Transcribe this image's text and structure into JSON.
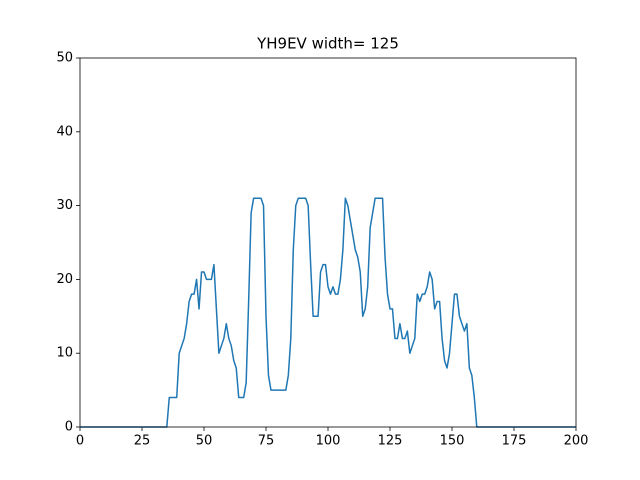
{
  "chart_data": {
    "type": "line",
    "title": "YH9EV width= 125",
    "x": [
      0,
      35,
      36,
      37,
      38,
      39,
      40,
      41,
      42,
      43,
      44,
      45,
      46,
      47,
      48,
      49,
      50,
      51,
      52,
      53,
      54,
      55,
      56,
      57,
      58,
      59,
      60,
      61,
      62,
      63,
      64,
      65,
      66,
      67,
      68,
      69,
      70,
      71,
      72,
      73,
      74,
      75,
      76,
      77,
      78,
      79,
      80,
      81,
      82,
      83,
      84,
      85,
      86,
      87,
      88,
      89,
      90,
      91,
      92,
      93,
      94,
      95,
      96,
      97,
      98,
      99,
      100,
      101,
      102,
      103,
      104,
      105,
      106,
      107,
      108,
      109,
      110,
      111,
      112,
      113,
      114,
      115,
      116,
      117,
      118,
      119,
      120,
      121,
      122,
      123,
      124,
      125,
      126,
      127,
      128,
      129,
      130,
      131,
      132,
      133,
      134,
      135,
      136,
      137,
      138,
      139,
      140,
      141,
      142,
      143,
      144,
      145,
      146,
      147,
      148,
      149,
      150,
      151,
      152,
      153,
      154,
      155,
      156,
      157,
      158,
      159,
      160,
      200
    ],
    "series": [
      {
        "color": "#1f77b4",
        "values": [
          0,
          0,
          4,
          4,
          4,
          4,
          10,
          11,
          12,
          14,
          17,
          18,
          18,
          20,
          16,
          21,
          21,
          20,
          20,
          20,
          22,
          16,
          10,
          11,
          12,
          14,
          12,
          11,
          9,
          8,
          4,
          4,
          4,
          6,
          17,
          29,
          31,
          31,
          31,
          31,
          30,
          15,
          7,
          5,
          5,
          5,
          5,
          5,
          5,
          5,
          7,
          12,
          24,
          30,
          31,
          31,
          31,
          31,
          30,
          22,
          15,
          15,
          15,
          21,
          22,
          22,
          19,
          18,
          19,
          18,
          18,
          20,
          24,
          31,
          30,
          28,
          26,
          24,
          23,
          21,
          15,
          16,
          19,
          27,
          29,
          31,
          31,
          31,
          31,
          23,
          18,
          16,
          16,
          12,
          12,
          14,
          12,
          12,
          13,
          10,
          11,
          12,
          18,
          17,
          18,
          18,
          19,
          21,
          20,
          16,
          17,
          17,
          12,
          9,
          8,
          10,
          14,
          18,
          18,
          15,
          14,
          13,
          14,
          8,
          7,
          4,
          0,
          0
        ]
      }
    ],
    "xlim": [
      0,
      200
    ],
    "ylim": [
      0,
      50
    ],
    "xticks": [
      0,
      25,
      50,
      75,
      100,
      125,
      150,
      175,
      200
    ],
    "yticks": [
      0,
      10,
      20,
      30,
      40,
      50
    ]
  }
}
